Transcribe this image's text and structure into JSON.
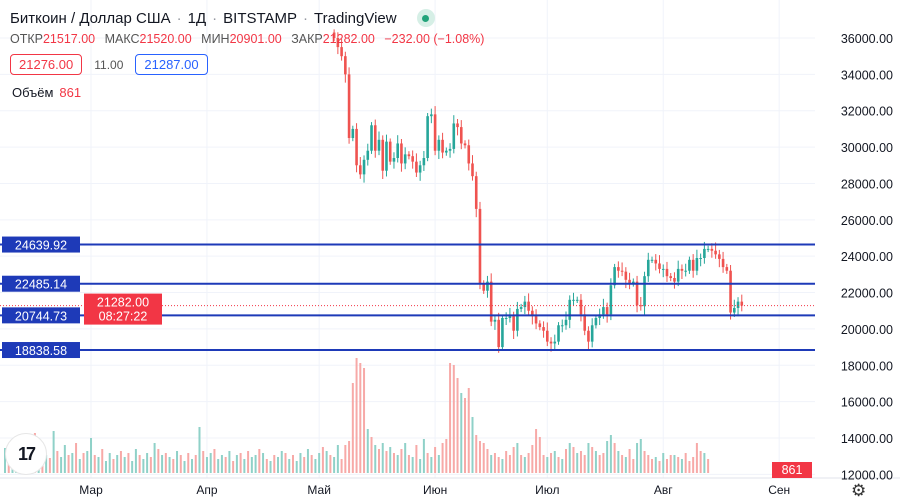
{
  "header": {
    "symbol": "Биткоин / Доллар США",
    "interval": "1Д",
    "exchange": "BITSTAMP",
    "source": "TradingView",
    "status_color": "#22a37a"
  },
  "ohlc": {
    "open_label": "ОТКР",
    "open": "21517.00",
    "high_label": "МАКС",
    "high": "21520.00",
    "low_label": "МИН",
    "low": "20901.00",
    "close_label": "ЗАКР",
    "close": "21282.00",
    "change": "−232.00 (−1.08%)"
  },
  "quotes": {
    "bid": "21276.00",
    "spread": "11.00",
    "ask": "21287.00"
  },
  "volume": {
    "label": "Объём",
    "value": "861"
  },
  "price_axis": {
    "ticks": [
      "36000.00",
      "34000.00",
      "32000.00",
      "30000.00",
      "28000.00",
      "26000.00",
      "24000.00",
      "22000.00",
      "20000.00",
      "18000.00",
      "16000.00",
      "14000.00",
      "12000.00"
    ],
    "tick_values": [
      36000,
      34000,
      32000,
      30000,
      28000,
      26000,
      24000,
      22000,
      20000,
      18000,
      16000,
      14000,
      12000
    ]
  },
  "time_axis": {
    "labels": [
      "Мар",
      "Апр",
      "Май",
      "Июн",
      "Июл",
      "Авг",
      "Сен"
    ],
    "label_day_index": [
      23,
      54,
      84,
      115,
      145,
      176,
      207
    ]
  },
  "levels": [
    {
      "price": 24639.92,
      "label": "24639.92"
    },
    {
      "price": 22485.14,
      "label": "22485.14"
    },
    {
      "price": 20744.73,
      "label": "20744.73"
    },
    {
      "price": 18838.58,
      "label": "18838.58"
    }
  ],
  "last_price": {
    "price": 21282.0,
    "label": "21282.00",
    "countdown": "08:27:22"
  },
  "colors": {
    "up": "#26a69a",
    "down": "#ef5350",
    "level": "#1e3ab8",
    "last": "#f23645"
  },
  "chart_data": {
    "type": "candlestick",
    "first_close_day_index": 88,
    "closes": [
      36000,
      35500,
      35000,
      34000,
      30500,
      31000,
      29000,
      28500,
      29300,
      29800,
      31200,
      29800,
      30400,
      28700,
      30300,
      29200,
      29400,
      30200,
      29100,
      29600,
      29500,
      29200,
      28600,
      29000,
      29400,
      31700,
      31800,
      29800,
      30400,
      29700,
      29800,
      29900,
      31300,
      31100,
      30200,
      30100,
      29100,
      28400,
      26600,
      22500,
      22100,
      22600,
      20400,
      20500,
      19000,
      20600,
      20600,
      20700,
      19900,
      21100,
      21200,
      21500,
      21000,
      20700,
      20300,
      20100,
      19900,
      19300,
      19200,
      19300,
      20200,
      20200,
      20500,
      21600,
      21600,
      21600,
      20800,
      19900,
      19300,
      20200,
      20600,
      20800,
      21200,
      20800,
      22400,
      23400,
      23200,
      23150,
      22700,
      22500,
      22600,
      21300,
      21250,
      22900,
      23800,
      23800,
      23600,
      23300,
      23300,
      22900,
      22800,
      22600,
      23300,
      23200,
      23200,
      23800,
      23200,
      23900,
      23900,
      24400,
      24400,
      24300,
      24100,
      23850,
      23400,
      23200,
      20900,
      21150,
      21500,
      21282
    ],
    "wick": 350,
    "volumes": [
      25,
      -20,
      15,
      30,
      -12,
      18,
      22,
      -14,
      -40,
      20,
      -25,
      18,
      -15,
      42,
      -22,
      16,
      28,
      -18,
      20,
      -30,
      14,
      -20,
      22,
      35,
      -18,
      16,
      -24,
      12,
      20,
      -14,
      18,
      -22,
      16,
      -20,
      12,
      24,
      -18,
      14,
      20,
      -16,
      30,
      -24,
      18,
      -20,
      16,
      -14,
      22,
      -18,
      12,
      -20,
      14,
      -18,
      46,
      -22,
      16,
      20,
      -24,
      14,
      18,
      -16,
      22,
      -12,
      18,
      -20,
      14,
      -22,
      16,
      18,
      -24,
      20,
      -14,
      12,
      -18,
      16,
      22,
      -20,
      14,
      -18,
      12,
      20,
      -16,
      24,
      -18,
      14,
      20,
      -26,
      22,
      -18,
      16,
      28,
      -14,
      -28,
      -32,
      -90,
      -115,
      -110,
      -105,
      44,
      -36,
      28,
      -24,
      30,
      -22,
      26,
      -20,
      18,
      -24,
      30,
      -18,
      16,
      -28,
      14,
      34,
      -20,
      16,
      -26,
      18,
      -30,
      -34,
      -110,
      -108,
      -95,
      80,
      -75,
      -85,
      56,
      -38,
      -32,
      -30,
      -24,
      18,
      -20,
      -16,
      14,
      -22,
      -18,
      -26,
      30,
      -18,
      16,
      -20,
      -28,
      -44,
      -36,
      -18,
      16,
      -20,
      22,
      -16,
      14,
      -24,
      30,
      -26,
      20,
      -22,
      -18,
      30,
      -26,
      22,
      -18,
      -20,
      32,
      38,
      -30,
      22,
      -18,
      16,
      -24,
      -14,
      30,
      34,
      -22,
      -18,
      -14,
      16,
      -12,
      20,
      -14,
      -18,
      18,
      -16,
      14,
      -20,
      -12,
      -16,
      -30,
      -22,
      20,
      -14
    ]
  },
  "settings_icon": "gear-icon"
}
